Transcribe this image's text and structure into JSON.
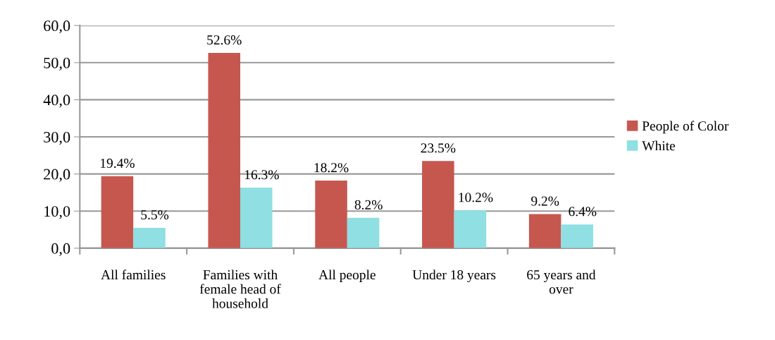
{
  "chart_data": {
    "type": "bar",
    "categories": [
      "All families",
      "Families with female head of household",
      "All people",
      "Under 18 years",
      "65 years and over"
    ],
    "series": [
      {
        "name": "People of Color",
        "color": "#c6574f",
        "values": [
          19.4,
          52.6,
          18.2,
          23.5,
          9.2
        ],
        "value_labels": [
          "19.4%",
          "52.6%",
          "18.2%",
          "23.5%",
          "9.2%"
        ]
      },
      {
        "name": "White",
        "color": "#8fdfe3",
        "values": [
          5.5,
          16.3,
          8.2,
          10.2,
          6.4
        ],
        "value_labels": [
          "5.5%",
          "16.3%",
          "8.2%",
          "10.2%",
          "6.4%"
        ]
      }
    ],
    "ylim": [
      0,
      60
    ],
    "yticks": [
      {
        "value": 0,
        "label": "0,0"
      },
      {
        "value": 10,
        "label": "10,0"
      },
      {
        "value": 20,
        "label": "20,0"
      },
      {
        "value": 30,
        "label": "30,0"
      },
      {
        "value": 40,
        "label": "40,0"
      },
      {
        "value": 50,
        "label": "50,0"
      },
      {
        "value": 60,
        "label": "60,0"
      }
    ],
    "grid": "y",
    "legend": "right"
  }
}
